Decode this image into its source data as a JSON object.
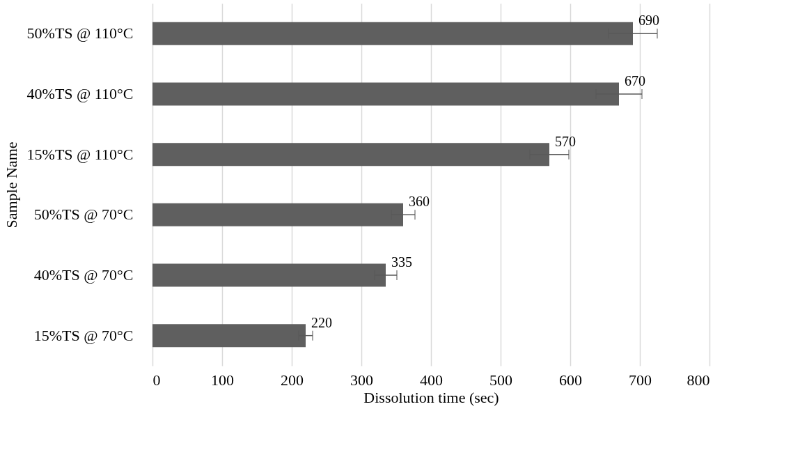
{
  "chart_data": {
    "type": "bar",
    "orientation": "horizontal",
    "xlabel": "Dissolution time (sec)",
    "ylabel": "Sample Name",
    "categories": [
      "50%TS @ 110°C",
      "40%TS @ 110°C",
      "15%TS @ 110°C",
      "50%TS @ 70°C",
      "40%TS @ 70°C",
      "15%TS @ 70°C"
    ],
    "values": [
      690,
      670,
      570,
      360,
      335,
      220
    ],
    "errors": [
      35,
      33,
      28,
      17,
      16,
      10
    ],
    "color": "#5f5f5f",
    "xlim": [
      0,
      800
    ],
    "xticks": [
      0,
      100,
      200,
      300,
      400,
      500,
      600,
      700,
      800
    ],
    "grid": "x",
    "data_labels": true
  }
}
